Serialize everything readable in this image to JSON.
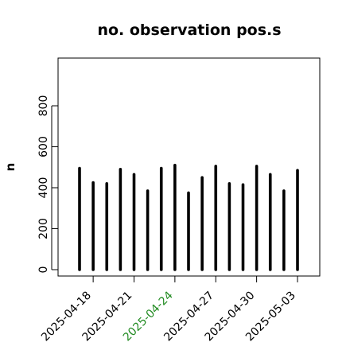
{
  "chart_data": {
    "type": "bar",
    "title": "no. observation pos.s",
    "xlabel": "",
    "ylabel": "n",
    "ylim": [
      0,
      1060
    ],
    "yticks": [
      0,
      200,
      400,
      600,
      800
    ],
    "ytick_labels": [
      "0",
      "200",
      "400",
      "600",
      "800"
    ],
    "x": [
      "2025-04-17",
      "2025-04-18",
      "2025-04-19",
      "2025-04-20",
      "2025-04-21",
      "2025-04-22",
      "2025-04-23",
      "2025-04-24",
      "2025-04-25",
      "2025-04-26",
      "2025-04-27",
      "2025-04-28",
      "2025-04-29",
      "2025-04-30",
      "2025-05-01",
      "2025-05-02",
      "2025-05-03"
    ],
    "values": [
      495,
      425,
      420,
      490,
      465,
      385,
      495,
      510,
      375,
      450,
      505,
      420,
      415,
      505,
      465,
      385,
      485
    ],
    "xticks": [
      {
        "label": "2025-04-18",
        "date": "2025-04-18",
        "color": "#000000"
      },
      {
        "label": "2025-04-21",
        "date": "2025-04-21",
        "color": "#000000"
      },
      {
        "label": "2025-04-24",
        "date": "2025-04-24",
        "color": "#228B22"
      },
      {
        "label": "2025-04-27",
        "date": "2025-04-27",
        "color": "#000000"
      },
      {
        "label": "2025-04-30",
        "date": "2025-04-30",
        "color": "#000000"
      },
      {
        "label": "2025-05-03",
        "date": "2025-05-03",
        "color": "#000000"
      }
    ],
    "grid": false,
    "bar_color": "#000000"
  }
}
